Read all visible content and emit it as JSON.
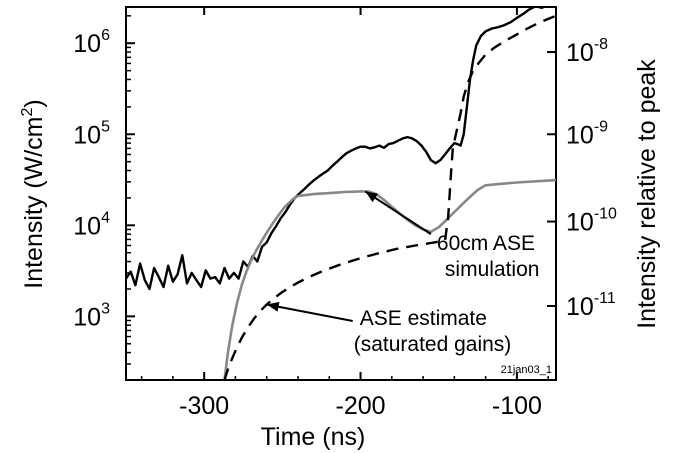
{
  "chart_data": {
    "type": "line",
    "xlabel": "Time (ns)",
    "ylabel": "Intensity (W/cm",
    "ylabel_sup": "2",
    "ylabel_close": ")",
    "ylabel_right": "Intensity relative to peak",
    "xlim": [
      -350,
      -75
    ],
    "ylim": [
      200,
      2500000
    ],
    "yscale": "log",
    "x_ticks": [
      {
        "value": -300,
        "label": "-300"
      },
      {
        "value": -200,
        "label": "-200"
      },
      {
        "value": -100,
        "label": "-100"
      }
    ],
    "y_ticks": [
      {
        "value": 1000,
        "base": "10",
        "exp": "3"
      },
      {
        "value": 10000,
        "base": "10",
        "exp": "4"
      },
      {
        "value": 100000,
        "base": "10",
        "exp": "5"
      },
      {
        "value": 1000000,
        "base": "10",
        "exp": "6"
      }
    ],
    "y_right_ticks": [
      {
        "value": 1300,
        "base": "10",
        "exp": "-11"
      },
      {
        "value": 11000,
        "base": "10",
        "exp": "-10"
      },
      {
        "value": 100000,
        "base": "10",
        "exp": "-9"
      },
      {
        "value": 800000,
        "base": "10",
        "exp": "-8"
      }
    ],
    "grid": false,
    "legend": "none",
    "series": [
      {
        "color": "#000000",
        "style": "solid",
        "points": [
          [
            -350,
            2600
          ],
          [
            -347,
            3100
          ],
          [
            -344,
            2200
          ],
          [
            -341,
            3800
          ],
          [
            -338,
            2500
          ],
          [
            -335,
            2000
          ],
          [
            -332,
            3400
          ],
          [
            -329,
            2700
          ],
          [
            -326,
            2100
          ],
          [
            -323,
            3600
          ],
          [
            -320,
            2400
          ],
          [
            -317,
            2900
          ],
          [
            -314,
            4700
          ],
          [
            -311,
            2300
          ],
          [
            -308,
            3000
          ],
          [
            -305,
            2500
          ],
          [
            -302,
            2100
          ],
          [
            -299,
            3200
          ],
          [
            -296,
            2600
          ],
          [
            -293,
            2700
          ],
          [
            -290,
            2300
          ],
          [
            -287,
            3400
          ],
          [
            -284,
            2600
          ],
          [
            -281,
            3000
          ],
          [
            -278,
            2600
          ],
          [
            -275,
            4000
          ],
          [
            -272,
            3500
          ],
          [
            -269,
            4600
          ],
          [
            -266,
            4000
          ],
          [
            -263,
            5800
          ],
          [
            -260,
            6500
          ],
          [
            -257,
            8200
          ],
          [
            -254,
            9800
          ],
          [
            -251,
            12000
          ],
          [
            -248,
            14000
          ],
          [
            -245,
            17000
          ],
          [
            -242,
            20000
          ],
          [
            -239,
            22500
          ],
          [
            -236,
            25000
          ],
          [
            -233,
            28000
          ],
          [
            -230,
            31000
          ],
          [
            -227,
            34000
          ],
          [
            -224,
            37000
          ],
          [
            -221,
            40000
          ],
          [
            -218,
            45000
          ],
          [
            -215,
            50000
          ],
          [
            -212,
            56000
          ],
          [
            -209,
            62000
          ],
          [
            -206,
            66000
          ],
          [
            -203,
            70000
          ],
          [
            -200,
            73000
          ],
          [
            -197,
            73000
          ],
          [
            -194,
            70000
          ],
          [
            -191,
            72000
          ],
          [
            -188,
            75000
          ],
          [
            -185,
            71000
          ],
          [
            -182,
            78000
          ],
          [
            -179,
            80000
          ],
          [
            -176,
            85000
          ],
          [
            -173,
            90000
          ],
          [
            -170,
            93000
          ],
          [
            -167,
            90000
          ],
          [
            -164,
            84000
          ],
          [
            -161,
            75000
          ],
          [
            -158,
            64000
          ],
          [
            -155,
            52000
          ],
          [
            -152,
            48000
          ],
          [
            -149,
            52000
          ],
          [
            -146,
            60000
          ],
          [
            -143,
            70000
          ],
          [
            -140,
            80000
          ],
          [
            -138,
            78000
          ],
          [
            -136,
            75000
          ],
          [
            -134,
            100000
          ],
          [
            -132,
            200000
          ],
          [
            -130,
            400000
          ],
          [
            -128,
            650000
          ],
          [
            -126,
            950000
          ],
          [
            -123,
            1200000
          ],
          [
            -120,
            1350000
          ],
          [
            -116,
            1450000
          ],
          [
            -112,
            1500000
          ],
          [
            -108,
            1580000
          ],
          [
            -104,
            1700000
          ],
          [
            -100,
            1900000
          ],
          [
            -96,
            2100000
          ],
          [
            -92,
            2350000
          ],
          [
            -88,
            2550000
          ],
          [
            -84,
            2450000
          ],
          [
            -80,
            2650000
          ],
          [
            -77,
            2800000
          ]
        ]
      },
      {
        "color": "#888888",
        "style": "solid",
        "points": [
          [
            -287,
            200
          ],
          [
            -285,
            380
          ],
          [
            -282,
            800
          ],
          [
            -279,
            1400
          ],
          [
            -276,
            2200
          ],
          [
            -273,
            3100
          ],
          [
            -270,
            4100
          ],
          [
            -267,
            5200
          ],
          [
            -264,
            6400
          ],
          [
            -261,
            7800
          ],
          [
            -258,
            9400
          ],
          [
            -255,
            11200
          ],
          [
            -252,
            13200
          ],
          [
            -249,
            15500
          ],
          [
            -246,
            17500
          ],
          [
            -243,
            19500
          ],
          [
            -240,
            21000
          ],
          [
            -230,
            22000
          ],
          [
            -220,
            22600
          ],
          [
            -210,
            23200
          ],
          [
            -200,
            23600
          ],
          [
            -195,
            23500
          ],
          [
            -190,
            22000
          ],
          [
            -185,
            19000
          ],
          [
            -180,
            16000
          ],
          [
            -175,
            13500
          ],
          [
            -170,
            11500
          ],
          [
            -165,
            10000
          ],
          [
            -160,
            9000
          ],
          [
            -155,
            8500
          ],
          [
            -150,
            9500
          ],
          [
            -145,
            11500
          ],
          [
            -140,
            14000
          ],
          [
            -135,
            17000
          ],
          [
            -130,
            20500
          ],
          [
            -125,
            24500
          ],
          [
            -120,
            27500
          ],
          [
            -110,
            28600
          ],
          [
            -100,
            29500
          ],
          [
            -90,
            30300
          ],
          [
            -80,
            31000
          ],
          [
            -75,
            31300
          ]
        ]
      },
      {
        "color": "#000000",
        "style": "dashed",
        "points": [
          [
            -287,
            200
          ],
          [
            -284,
            290
          ],
          [
            -280,
            420
          ],
          [
            -276,
            580
          ],
          [
            -272,
            760
          ],
          [
            -268,
            950
          ],
          [
            -264,
            1150
          ],
          [
            -260,
            1350
          ],
          [
            -255,
            1600
          ],
          [
            -250,
            1850
          ],
          [
            -245,
            2100
          ],
          [
            -240,
            2350
          ],
          [
            -235,
            2600
          ],
          [
            -230,
            2850
          ],
          [
            -225,
            3100
          ],
          [
            -220,
            3350
          ],
          [
            -215,
            3600
          ],
          [
            -210,
            3850
          ],
          [
            -205,
            4100
          ],
          [
            -200,
            4350
          ],
          [
            -195,
            4600
          ],
          [
            -190,
            4850
          ],
          [
            -185,
            5100
          ],
          [
            -180,
            5350
          ],
          [
            -175,
            5600
          ],
          [
            -170,
            5800
          ],
          [
            -165,
            6000
          ],
          [
            -160,
            6200
          ],
          [
            -155,
            6400
          ],
          [
            -150,
            6600
          ],
          [
            -146,
            6800
          ],
          [
            -144,
            12000
          ],
          [
            -142,
            40000
          ],
          [
            -141,
            70000
          ],
          [
            -139,
            100000
          ],
          [
            -136,
            170000
          ],
          [
            -134,
            260000
          ],
          [
            -131,
            380000
          ],
          [
            -128,
            500000
          ],
          [
            -124,
            620000
          ],
          [
            -120,
            750000
          ],
          [
            -115,
            880000
          ],
          [
            -110,
            1000000
          ],
          [
            -105,
            1120000
          ],
          [
            -100,
            1250000
          ],
          [
            -95,
            1400000
          ],
          [
            -90,
            1550000
          ],
          [
            -85,
            1700000
          ],
          [
            -80,
            1850000
          ],
          [
            -75,
            2000000
          ]
        ]
      }
    ],
    "annotations": [
      {
        "lines": [
          "60cm ASE",
          "simulation"
        ],
        "arrow_to": [
          -197,
          23600
        ],
        "text_at": [
          -155,
          8000
        ]
      },
      {
        "lines": [
          "ASE estimate",
          "(saturated gains)"
        ],
        "arrow_to": [
          -260,
          1350
        ],
        "text_at": [
          -205,
          890
        ]
      }
    ],
    "tag": "21jan03_1"
  }
}
